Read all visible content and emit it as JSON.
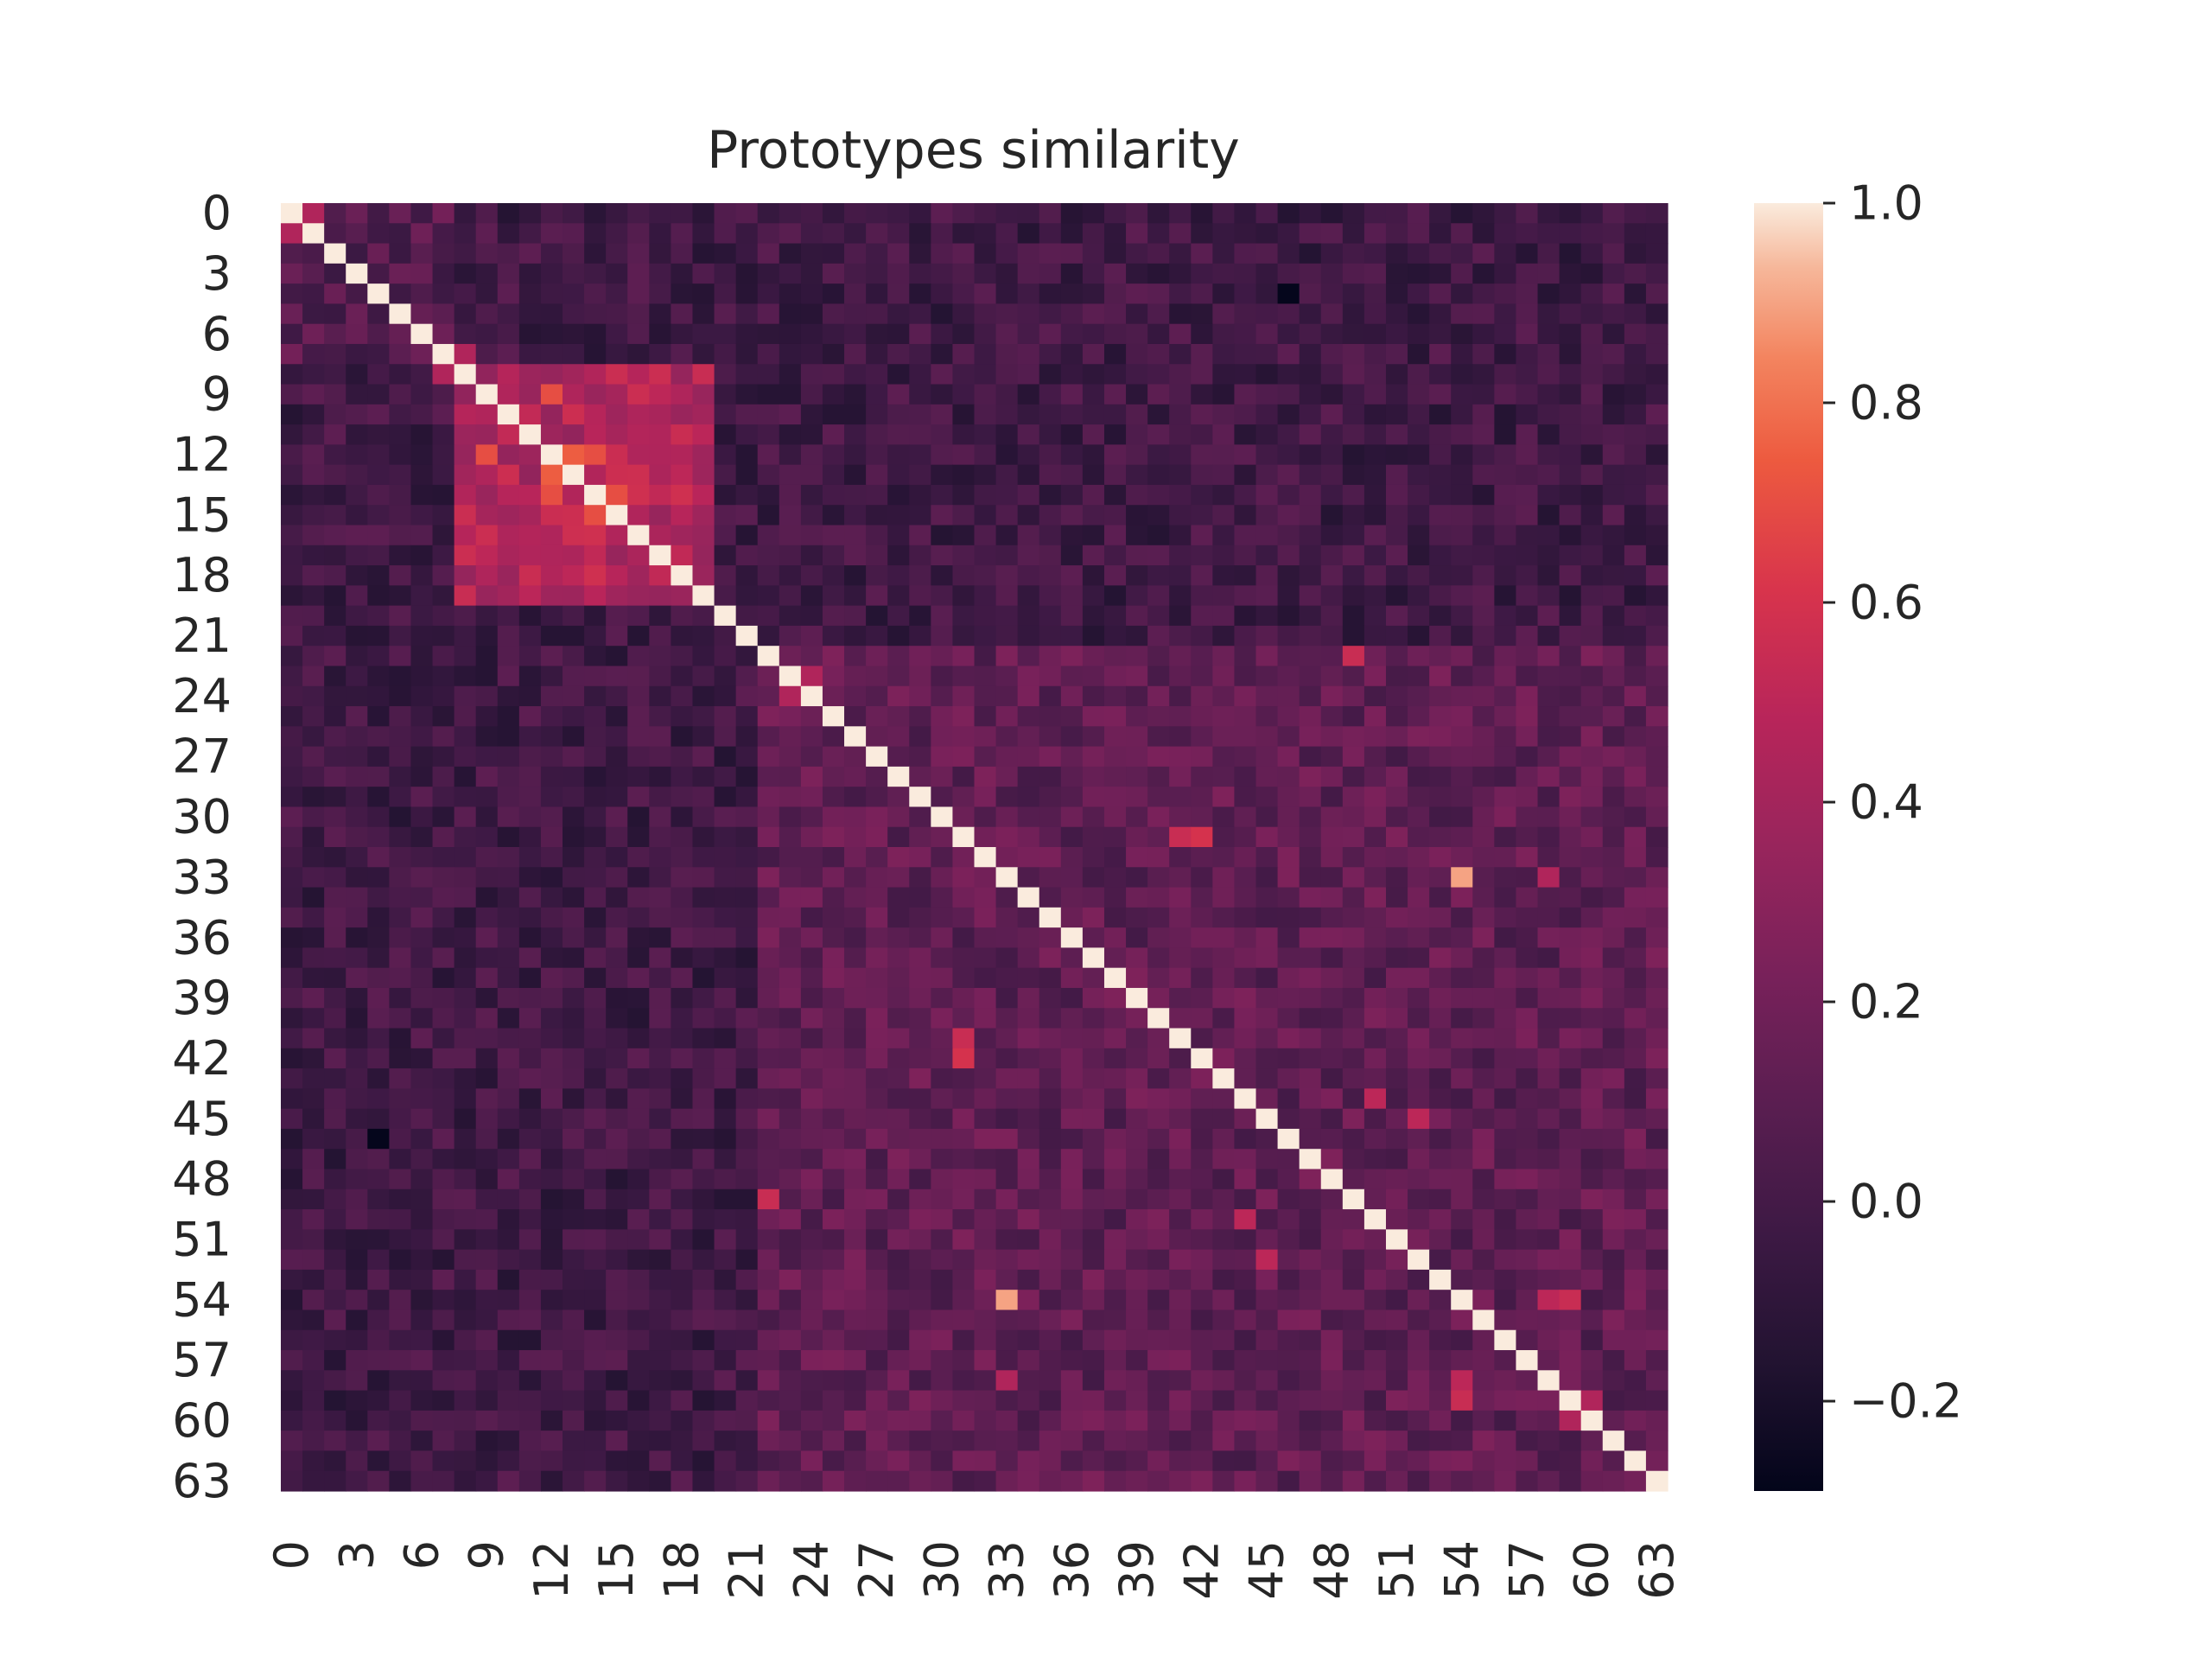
{
  "chart_data": {
    "type": "heatmap",
    "title": "Prototypes similarity",
    "xlabel": "",
    "ylabel": "",
    "rows": 64,
    "cols": 64,
    "x_tick_labels": [
      "0",
      "3",
      "6",
      "9",
      "12",
      "15",
      "18",
      "21",
      "24",
      "27",
      "30",
      "33",
      "36",
      "39",
      "42",
      "45",
      "48",
      "51",
      "54",
      "57",
      "60",
      "63"
    ],
    "y_tick_labels": [
      "0",
      "3",
      "6",
      "9",
      "12",
      "15",
      "18",
      "21",
      "24",
      "27",
      "30",
      "33",
      "36",
      "39",
      "42",
      "45",
      "48",
      "51",
      "54",
      "57",
      "60",
      "63"
    ],
    "tick_step": 3,
    "value_range": [
      -0.29,
      1.0
    ],
    "colormap": "rocket",
    "colorbar": {
      "ticks": [
        1.0,
        0.8,
        0.6,
        0.4,
        0.2,
        0.0,
        -0.2
      ],
      "tick_labels": [
        "1.0",
        "0.8",
        "0.6",
        "0.4",
        "0.2",
        "0.0",
        "−0.2"
      ]
    },
    "diagonal_value": 1.0,
    "blocks": [
      {
        "rows": [
          8,
          19
        ],
        "cols": [
          8,
          19
        ],
        "mean": 0.45
      },
      {
        "rows": [
          22,
          63
        ],
        "cols": [
          22,
          63
        ],
        "mean": 0.12
      }
    ],
    "notable_cells": [
      {
        "row": 0,
        "col": 1,
        "value": 0.45
      },
      {
        "row": 7,
        "col": 8,
        "value": 0.45
      },
      {
        "row": 9,
        "col": 12,
        "value": 0.7
      },
      {
        "row": 12,
        "col": 14,
        "value": 0.7
      },
      {
        "row": 13,
        "col": 12,
        "value": 0.75
      },
      {
        "row": 14,
        "col": 15,
        "value": 0.7
      },
      {
        "row": 23,
        "col": 24,
        "value": 0.45
      },
      {
        "row": 31,
        "col": 41,
        "value": 0.55
      },
      {
        "row": 33,
        "col": 54,
        "value": 0.9
      },
      {
        "row": 33,
        "col": 58,
        "value": 0.45
      },
      {
        "row": 42,
        "col": 31,
        "value": 0.6
      },
      {
        "row": 44,
        "col": 50,
        "value": 0.5
      },
      {
        "row": 49,
        "col": 22,
        "value": 0.55
      },
      {
        "row": 52,
        "col": 45,
        "value": 0.5
      },
      {
        "row": 54,
        "col": 58,
        "value": 0.5
      },
      {
        "row": 59,
        "col": 54,
        "value": 0.55
      },
      {
        "row": 60,
        "col": 59,
        "value": 0.45
      },
      {
        "row": 4,
        "col": 46,
        "value": -0.28
      }
    ]
  }
}
